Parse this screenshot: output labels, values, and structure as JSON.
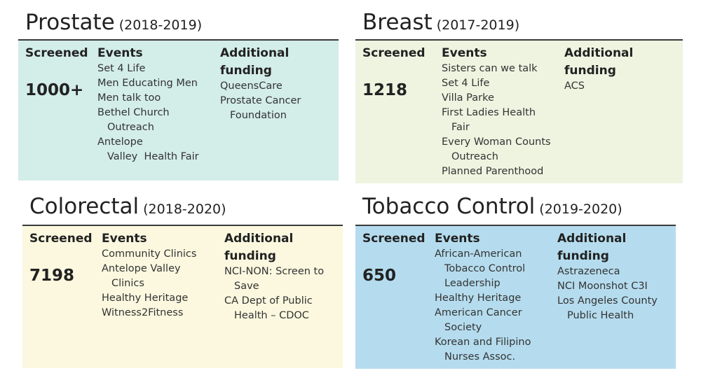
{
  "panels": [
    {
      "title": "Prostate",
      "years": "(2018-2019)",
      "color": "#d3ede8",
      "screened_label": "Screened",
      "screened": "1000+",
      "events_label": "Events",
      "events": [
        {
          "line1": "Set 4 Life",
          "line2": ""
        },
        {
          "line1": "Men Educating Men",
          "line2": ""
        },
        {
          "line1": "Men talk too",
          "line2": ""
        },
        {
          "line1": "Bethel Church",
          "line2": "Outreach"
        },
        {
          "line1": "Antelope",
          "line2": "Valley  Health Fair"
        }
      ],
      "funding_label_1": "Additional",
      "funding_label_2": "funding",
      "funding": [
        {
          "line1": "QueensCare",
          "line2": ""
        },
        {
          "line1": "Prostate Cancer",
          "line2": "Foundation"
        }
      ]
    },
    {
      "title": "Breast",
      "years": "(2017-2019)",
      "color": "#eef4e0",
      "screened_label": "Screened",
      "screened": "1218",
      "events_label": "Events",
      "events": [
        {
          "line1": "Sisters can we talk",
          "line2": ""
        },
        {
          "line1": "Set 4 Life",
          "line2": ""
        },
        {
          "line1": "Villa Parke",
          "line2": ""
        },
        {
          "line1": "First Ladies Health",
          "line2": "Fair"
        },
        {
          "line1": "Every Woman Counts",
          "line2": "Outreach"
        },
        {
          "line1": "Planned Parenthood",
          "line2": ""
        }
      ],
      "funding_label_1": "Additional",
      "funding_label_2": "funding",
      "funding": [
        {
          "line1": "ACS",
          "line2": ""
        }
      ]
    },
    {
      "title": "Colorectal",
      "years": "(2018-2020)",
      "color": "#fbf8df",
      "screened_label": "Screened",
      "screened": "7198",
      "events_label": "Events",
      "events": [
        {
          "line1": "Community Clinics",
          "line2": ""
        },
        {
          "line1": "Antelope Valley",
          "line2": "Clinics"
        },
        {
          "line1": "Healthy Heritage",
          "line2": ""
        },
        {
          "line1": "Witness2Fitness",
          "line2": ""
        }
      ],
      "funding_label_1": "Additional",
      "funding_label_2": "funding",
      "funding": [
        {
          "line1": "NCI-NON: Screen to",
          "line2": "Save"
        },
        {
          "line1": "CA Dept of Public",
          "line2": "Health – CDOC"
        }
      ]
    },
    {
      "title": "Tobacco Control",
      "years": "(2019-2020)",
      "color": "#b5dcee",
      "screened_label": "Screened",
      "screened": "650",
      "events_label": "Events",
      "events": [
        {
          "line1": "African-American",
          "line2": "Tobacco Control Leadership"
        },
        {
          "line1": "Healthy Heritage",
          "line2": ""
        },
        {
          "line1": "American Cancer",
          "line2": "Society"
        },
        {
          "line1": "Korean and Filipino",
          "line2": "Nurses Assoc."
        }
      ],
      "funding_label_1": "Additional",
      "funding_label_2": "funding",
      "funding": [
        {
          "line1": "Astrazeneca",
          "line2": ""
        },
        {
          "line1": "NCI Moonshot C3I",
          "line2": ""
        },
        {
          "line1": "Los Angeles County",
          "line2": "Public Health"
        }
      ]
    }
  ]
}
